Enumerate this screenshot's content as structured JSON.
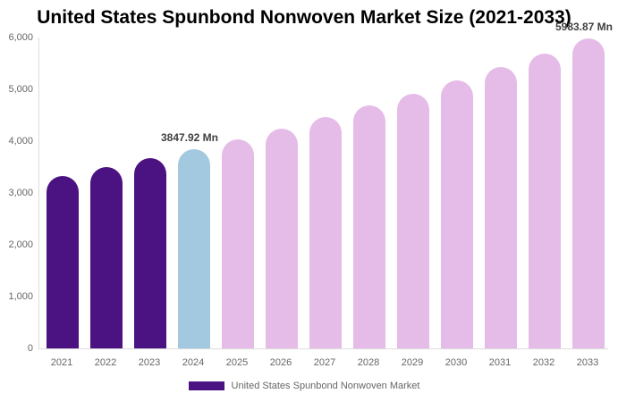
{
  "title": "United States Spunbond Nonwoven Market Size (2021-2033)",
  "legend": {
    "label": "United States Spunbond Nonwoven Market",
    "swatch_color": "#4b1382"
  },
  "colors": {
    "historical_bar": "#4b1382",
    "current_year_bar": "#a3c9e0",
    "forecast_bar": "#e5bce8",
    "axis_line": "#dddddd",
    "axis_text": "#666666",
    "annotation_text": "#404040",
    "title_text": "#000000",
    "background": "#ffffff"
  },
  "chart_data": {
    "type": "bar",
    "title": "United States Spunbond Nonwoven Market Size (2021-2033)",
    "xlabel": "",
    "ylabel": "",
    "unit": "Mn",
    "categories": [
      "2021",
      "2022",
      "2023",
      "2024",
      "2025",
      "2026",
      "2027",
      "2028",
      "2029",
      "2030",
      "2031",
      "2032",
      "2033"
    ],
    "values": [
      3335,
      3495,
      3675,
      3847.92,
      4041,
      4245,
      4458,
      4682,
      4918,
      5165,
      5425,
      5698,
      5983.87
    ],
    "bar_colors": [
      "#4b1382",
      "#4b1382",
      "#4b1382",
      "#a3c9e0",
      "#e5bce8",
      "#e5bce8",
      "#e5bce8",
      "#e5bce8",
      "#e5bce8",
      "#e5bce8",
      "#e5bce8",
      "#e5bce8",
      "#e5bce8"
    ],
    "ylim": [
      0,
      6000
    ],
    "yticks": [
      0,
      1000,
      2000,
      3000,
      4000,
      5000,
      6000
    ],
    "ytick_labels": [
      "0",
      "1,000",
      "2,000",
      "3,000",
      "4,000",
      "5,000",
      "6,000"
    ],
    "grid": false,
    "legend_position": "bottom",
    "annotations": [
      {
        "text": "3847.92 Mn",
        "category_index": 3
      },
      {
        "text": "5983.87 Mn",
        "category_index": 12
      }
    ]
  }
}
